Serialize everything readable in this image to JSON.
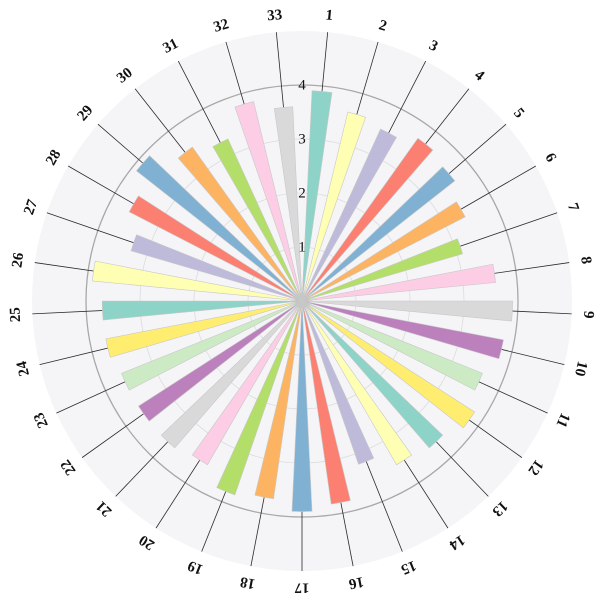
{
  "chart_data": {
    "type": "bar",
    "polar": true,
    "categories": [
      "1",
      "2",
      "3",
      "4",
      "5",
      "6",
      "7",
      "8",
      "9",
      "10",
      "11",
      "12",
      "13",
      "14",
      "15",
      "16",
      "17",
      "18",
      "19",
      "20",
      "21",
      "22",
      "23",
      "24",
      "25",
      "26",
      "27",
      "28",
      "29",
      "30",
      "31",
      "32",
      "33"
    ],
    "values": [
      3.9,
      3.6,
      3.5,
      3.7,
      3.6,
      3.4,
      3.1,
      3.6,
      3.9,
      3.8,
      3.6,
      3.8,
      3.6,
      3.5,
      3.2,
      3.8,
      3.9,
      3.7,
      3.8,
      3.5,
      3.6,
      3.6,
      3.6,
      3.7,
      3.7,
      3.9,
      3.3,
      3.6,
      3.9,
      3.5,
      3.3,
      3.8,
      3.6
    ],
    "colors": [
      "#8dd3c7",
      "#ffffb3",
      "#bebada",
      "#fb8072",
      "#80b1d3",
      "#fdb462",
      "#b3de69",
      "#fccde5",
      "#d9d9d9",
      "#bc80bd",
      "#ccebc5",
      "#ffed6f"
    ],
    "radial_ticks": [
      1,
      2,
      3,
      4
    ],
    "rlim": [
      0,
      5
    ],
    "title": "",
    "grid": true,
    "legend": "none"
  }
}
